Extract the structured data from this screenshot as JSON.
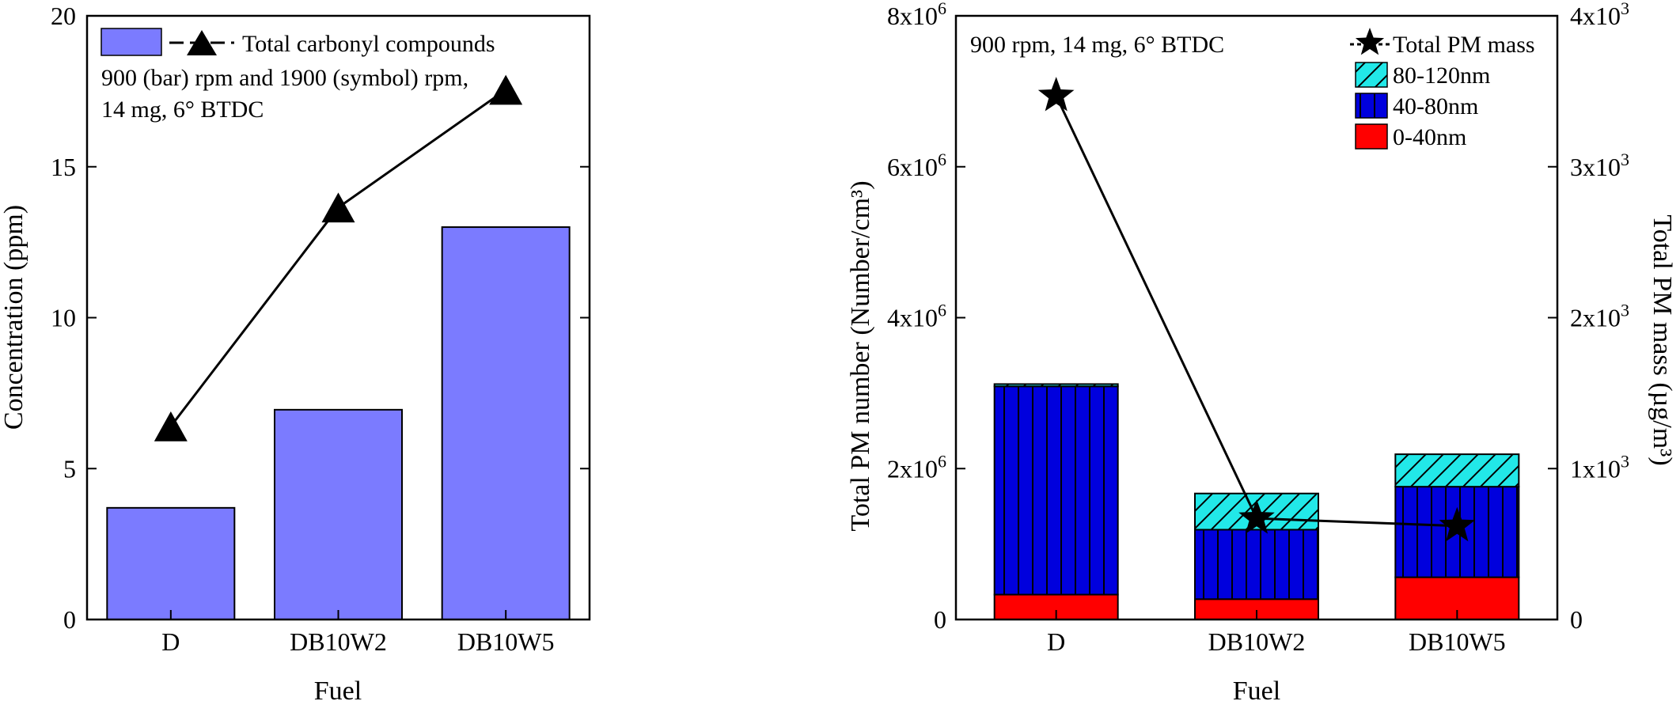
{
  "chart_data": [
    {
      "type": "bar",
      "title": "",
      "xlabel": "Fuel",
      "ylabel": "Concentration (ppm)",
      "categories": [
        "D",
        "DB10W2",
        "DB10W5"
      ],
      "ylim": [
        0,
        20
      ],
      "yticks": [
        0,
        5,
        10,
        15,
        20
      ],
      "bar_values": [
        3.7,
        6.95,
        13.0
      ],
      "line_series": {
        "name": "Total carbonyl compounds",
        "values": [
          6.4,
          13.65,
          17.55
        ],
        "marker": "triangle"
      },
      "annotation": [
        "900 (bar) rpm and 1900 (symbol) rpm,",
        "14 mg, 6° BTDC"
      ],
      "colors": {
        "bar": "#7b7bff",
        "line": "#000000"
      },
      "legend_position": "top-left",
      "grid": false
    },
    {
      "type": "bar",
      "stacked": true,
      "title": "",
      "xlabel": "Fuel",
      "ylabel": "Total PM number (Number/cm³)",
      "ylabel_right": "Total PM mass (µg/m³)",
      "categories": [
        "D",
        "DB10W2",
        "DB10W5"
      ],
      "ylim": [
        0,
        8000000
      ],
      "ylim_right": [
        0,
        4000
      ],
      "yticks": [
        0,
        2000000,
        4000000,
        6000000,
        8000000
      ],
      "yticks_right": [
        0,
        1000,
        2000,
        3000,
        4000
      ],
      "ytick_labels": [
        {
          "base": "0",
          "exp": ""
        },
        {
          "base": "2x10",
          "exp": "6"
        },
        {
          "base": "4x10",
          "exp": "6"
        },
        {
          "base": "6x10",
          "exp": "6"
        },
        {
          "base": "8x10",
          "exp": "6"
        }
      ],
      "ytick_labels_right": [
        {
          "base": "0",
          "exp": ""
        },
        {
          "base": "1x10",
          "exp": "3"
        },
        {
          "base": "2x10",
          "exp": "3"
        },
        {
          "base": "3x10",
          "exp": "3"
        },
        {
          "base": "4x10",
          "exp": "3"
        }
      ],
      "series": [
        {
          "name": "0-40nm",
          "values": [
            330000,
            270000,
            560000
          ],
          "color": "#ff0000",
          "pattern": "solid"
        },
        {
          "name": "40-80nm",
          "values": [
            2760000,
            920000,
            1200000
          ],
          "color": "#0000dd",
          "pattern": "vertical"
        },
        {
          "name": "80-120nm",
          "values": [
            30000,
            480000,
            430000
          ],
          "color": "#22e8e8",
          "pattern": "diagonal"
        }
      ],
      "line_series": {
        "name": "Total PM mass",
        "values": [
          3470,
          670,
          620
        ],
        "axis": "right",
        "marker": "star"
      },
      "annotation": "900 rpm, 14 mg, 6° BTDC",
      "legend_position": "top-right",
      "grid": false
    }
  ]
}
